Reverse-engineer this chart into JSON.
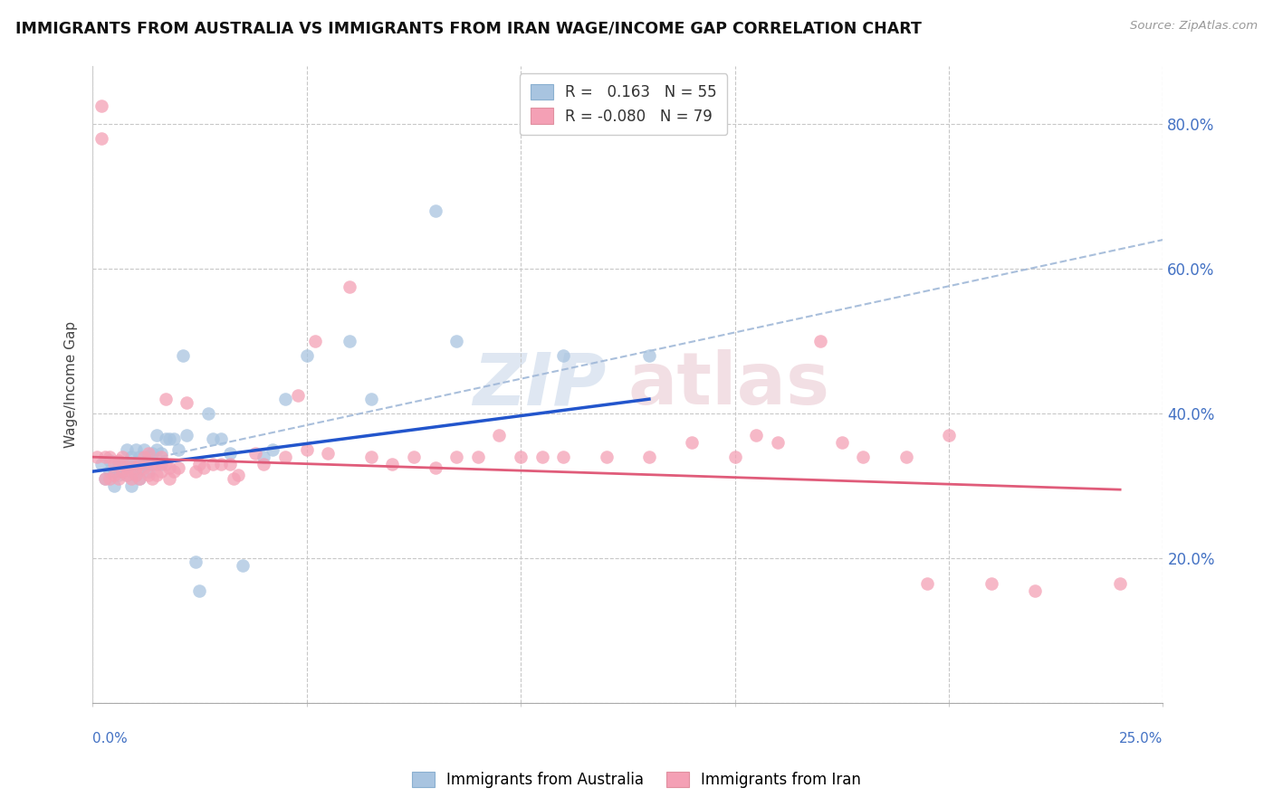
{
  "title": "IMMIGRANTS FROM AUSTRALIA VS IMMIGRANTS FROM IRAN WAGE/INCOME GAP CORRELATION CHART",
  "source": "Source: ZipAtlas.com",
  "ylabel": "Wage/Income Gap",
  "yticks": [
    0.0,
    0.2,
    0.4,
    0.6,
    0.8
  ],
  "ytick_labels": [
    "",
    "20.0%",
    "40.0%",
    "60.0%",
    "80.0%"
  ],
  "xlim": [
    0.0,
    0.25
  ],
  "ylim": [
    0.0,
    0.88
  ],
  "legend_line1": "R =   0.163   N = 55",
  "legend_line2": "R = -0.080   N = 79",
  "australia_color": "#a8c4e0",
  "iran_color": "#f4a0b5",
  "australia_line_color": "#2255cc",
  "iran_line_color": "#e05c7a",
  "dashed_line_color": "#a0b8d8",
  "watermark_zip": "ZIP",
  "watermark_atlas": "atlas",
  "australia_scatter_x": [
    0.002,
    0.003,
    0.004,
    0.004,
    0.005,
    0.005,
    0.006,
    0.006,
    0.007,
    0.007,
    0.008,
    0.008,
    0.008,
    0.009,
    0.009,
    0.009,
    0.01,
    0.01,
    0.01,
    0.011,
    0.011,
    0.011,
    0.012,
    0.012,
    0.013,
    0.013,
    0.014,
    0.014,
    0.015,
    0.015,
    0.016,
    0.016,
    0.017,
    0.018,
    0.019,
    0.02,
    0.021,
    0.022,
    0.024,
    0.025,
    0.027,
    0.028,
    0.03,
    0.032,
    0.035,
    0.04,
    0.042,
    0.045,
    0.05,
    0.06,
    0.065,
    0.08,
    0.085,
    0.11,
    0.13
  ],
  "australia_scatter_y": [
    0.33,
    0.31,
    0.335,
    0.32,
    0.3,
    0.32,
    0.33,
    0.315,
    0.32,
    0.33,
    0.315,
    0.33,
    0.35,
    0.3,
    0.32,
    0.34,
    0.315,
    0.33,
    0.35,
    0.31,
    0.325,
    0.34,
    0.33,
    0.35,
    0.32,
    0.34,
    0.33,
    0.345,
    0.35,
    0.37,
    0.33,
    0.345,
    0.365,
    0.365,
    0.365,
    0.35,
    0.48,
    0.37,
    0.195,
    0.155,
    0.4,
    0.365,
    0.365,
    0.345,
    0.19,
    0.34,
    0.35,
    0.42,
    0.48,
    0.5,
    0.42,
    0.68,
    0.5,
    0.48,
    0.48
  ],
  "iran_scatter_x": [
    0.001,
    0.002,
    0.002,
    0.003,
    0.003,
    0.004,
    0.004,
    0.005,
    0.005,
    0.006,
    0.006,
    0.007,
    0.007,
    0.008,
    0.008,
    0.009,
    0.009,
    0.01,
    0.01,
    0.011,
    0.011,
    0.012,
    0.012,
    0.013,
    0.013,
    0.014,
    0.014,
    0.015,
    0.015,
    0.016,
    0.016,
    0.017,
    0.017,
    0.018,
    0.018,
    0.019,
    0.02,
    0.022,
    0.024,
    0.025,
    0.026,
    0.028,
    0.03,
    0.032,
    0.033,
    0.034,
    0.038,
    0.04,
    0.045,
    0.048,
    0.05,
    0.052,
    0.055,
    0.06,
    0.065,
    0.07,
    0.075,
    0.08,
    0.085,
    0.09,
    0.095,
    0.1,
    0.105,
    0.11,
    0.12,
    0.13,
    0.14,
    0.15,
    0.155,
    0.16,
    0.17,
    0.175,
    0.18,
    0.19,
    0.195,
    0.2,
    0.21,
    0.22,
    0.24
  ],
  "iran_scatter_y": [
    0.34,
    0.825,
    0.78,
    0.34,
    0.31,
    0.34,
    0.31,
    0.33,
    0.315,
    0.335,
    0.31,
    0.34,
    0.32,
    0.325,
    0.315,
    0.33,
    0.31,
    0.325,
    0.315,
    0.33,
    0.31,
    0.34,
    0.325,
    0.345,
    0.315,
    0.33,
    0.31,
    0.33,
    0.315,
    0.34,
    0.32,
    0.33,
    0.42,
    0.325,
    0.31,
    0.32,
    0.325,
    0.415,
    0.32,
    0.33,
    0.325,
    0.33,
    0.33,
    0.33,
    0.31,
    0.315,
    0.345,
    0.33,
    0.34,
    0.425,
    0.35,
    0.5,
    0.345,
    0.575,
    0.34,
    0.33,
    0.34,
    0.325,
    0.34,
    0.34,
    0.37,
    0.34,
    0.34,
    0.34,
    0.34,
    0.34,
    0.36,
    0.34,
    0.37,
    0.36,
    0.5,
    0.36,
    0.34,
    0.34,
    0.165,
    0.37,
    0.165,
    0.155,
    0.165
  ],
  "australia_trend_x": [
    0.0,
    0.13
  ],
  "australia_trend_y": [
    0.32,
    0.42
  ],
  "iran_trend_x": [
    0.0,
    0.24
  ],
  "iran_trend_y": [
    0.34,
    0.295
  ],
  "dashed_line_x": [
    0.0,
    0.25
  ],
  "dashed_line_y": [
    0.32,
    0.64
  ]
}
